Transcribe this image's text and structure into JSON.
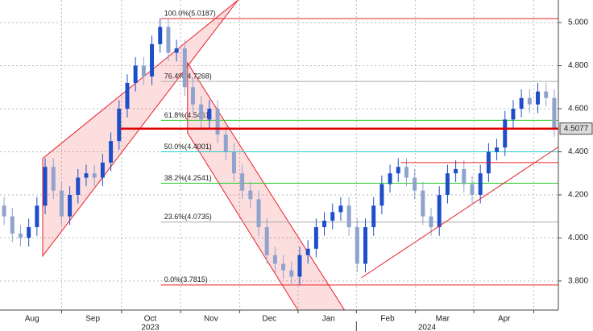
{
  "chart_data": {
    "type": "candlestick",
    "xlim": [
      0,
      68
    ],
    "ylim": [
      3.665,
      5.105
    ],
    "yticks": [
      {
        "value": 3.8,
        "label": "3.800"
      },
      {
        "value": 4.0,
        "label": "4.000"
      },
      {
        "value": 4.2,
        "label": "4.200"
      },
      {
        "value": 4.4,
        "label": "4.400"
      },
      {
        "value": 4.6,
        "label": "4.600"
      },
      {
        "value": 4.8,
        "label": "4.800"
      },
      {
        "value": 5.0,
        "label": "5.000"
      }
    ],
    "xticks": [
      {
        "value": 3.9,
        "label": "Aug"
      },
      {
        "value": 11.3,
        "label": "Sep"
      },
      {
        "value": 18.3,
        "label": "Oct"
      },
      {
        "value": 25.7,
        "label": "Nov"
      },
      {
        "value": 32.8,
        "label": "Dec"
      },
      {
        "value": 40,
        "label": "Jan"
      },
      {
        "value": 47.2,
        "label": "Feb"
      },
      {
        "value": 53.9,
        "label": "Mar"
      },
      {
        "value": 61.4,
        "label": "Apr"
      }
    ],
    "year_ticks": [
      {
        "value": 18.3,
        "label": "2023"
      },
      {
        "value": 52,
        "label": "2024"
      }
    ],
    "xgrid": [
      7.5,
      14.8,
      22,
      29.2,
      36.3,
      43.4,
      50.6,
      57.7,
      65
    ],
    "grid": true,
    "up_color": "#1f4fc8",
    "down_color": "#8fa3cc",
    "ohlc": [
      [
        4.15,
        4.19,
        4.06,
        4.1
      ],
      [
        4.1,
        4.14,
        3.98,
        4.02
      ],
      [
        4.02,
        4.06,
        3.96,
        4.0
      ],
      [
        4.0,
        4.09,
        3.96,
        4.05
      ],
      [
        4.05,
        4.19,
        4.01,
        4.15
      ],
      [
        4.15,
        4.37,
        4.11,
        4.33
      ],
      [
        4.33,
        4.37,
        4.18,
        4.22
      ],
      [
        4.22,
        4.26,
        4.06,
        4.1
      ],
      [
        4.1,
        4.24,
        4.06,
        4.2
      ],
      [
        4.2,
        4.32,
        4.16,
        4.28
      ],
      [
        4.28,
        4.34,
        4.24,
        4.3
      ],
      [
        4.3,
        4.34,
        4.24,
        4.28
      ],
      [
        4.28,
        4.39,
        4.24,
        4.35
      ],
      [
        4.35,
        4.49,
        4.31,
        4.45
      ],
      [
        4.45,
        4.64,
        4.41,
        4.6
      ],
      [
        4.6,
        4.76,
        4.56,
        4.72
      ],
      [
        4.72,
        4.84,
        4.68,
        4.8
      ],
      [
        4.8,
        4.84,
        4.71,
        4.75
      ],
      [
        4.75,
        4.94,
        4.71,
        4.9
      ],
      [
        4.9,
        5.02,
        4.86,
        4.98
      ],
      [
        4.98,
        5.02,
        4.82,
        4.86
      ],
      [
        4.86,
        4.92,
        4.82,
        4.88
      ],
      [
        4.88,
        4.92,
        4.66,
        4.7
      ],
      [
        4.7,
        4.74,
        4.58,
        4.62
      ],
      [
        4.62,
        4.66,
        4.51,
        4.55
      ],
      [
        4.55,
        4.64,
        4.51,
        4.6
      ],
      [
        4.6,
        4.64,
        4.44,
        4.48
      ],
      [
        4.48,
        4.52,
        4.36,
        4.4
      ],
      [
        4.4,
        4.44,
        4.26,
        4.3
      ],
      [
        4.3,
        4.34,
        4.18,
        4.22
      ],
      [
        4.22,
        4.26,
        4.14,
        4.18
      ],
      [
        4.18,
        4.22,
        4.01,
        4.05
      ],
      [
        4.05,
        4.09,
        3.88,
        3.92
      ],
      [
        3.92,
        3.96,
        3.84,
        3.88
      ],
      [
        3.88,
        3.92,
        3.81,
        3.85
      ],
      [
        3.85,
        3.89,
        3.78,
        3.82
      ],
      [
        3.82,
        3.96,
        3.78,
        3.92
      ],
      [
        3.92,
        3.99,
        3.88,
        3.95
      ],
      [
        3.95,
        4.09,
        3.91,
        4.05
      ],
      [
        4.05,
        4.12,
        4.01,
        4.08
      ],
      [
        4.08,
        4.16,
        4.04,
        4.12
      ],
      [
        4.12,
        4.19,
        4.08,
        4.15
      ],
      [
        4.15,
        4.19,
        4.01,
        4.05
      ],
      [
        4.05,
        4.09,
        3.84,
        3.88
      ],
      [
        3.88,
        4.09,
        3.84,
        4.05
      ],
      [
        4.05,
        4.19,
        4.01,
        4.15
      ],
      [
        4.15,
        4.29,
        4.11,
        4.25
      ],
      [
        4.25,
        4.34,
        4.21,
        4.3
      ],
      [
        4.3,
        4.37,
        4.26,
        4.33
      ],
      [
        4.33,
        4.37,
        4.24,
        4.28
      ],
      [
        4.28,
        4.32,
        4.18,
        4.22
      ],
      [
        4.22,
        4.26,
        4.06,
        4.1
      ],
      [
        4.1,
        4.14,
        4.01,
        4.05
      ],
      [
        4.05,
        4.24,
        4.01,
        4.2
      ],
      [
        4.2,
        4.34,
        4.16,
        4.3
      ],
      [
        4.3,
        4.36,
        4.26,
        4.32
      ],
      [
        4.32,
        4.36,
        4.21,
        4.25
      ],
      [
        4.25,
        4.29,
        4.16,
        4.2
      ],
      [
        4.2,
        4.34,
        4.16,
        4.3
      ],
      [
        4.3,
        4.44,
        4.26,
        4.4
      ],
      [
        4.4,
        4.46,
        4.36,
        4.42
      ],
      [
        4.42,
        4.59,
        4.38,
        4.55
      ],
      [
        4.55,
        4.64,
        4.51,
        4.6
      ],
      [
        4.6,
        4.69,
        4.56,
        4.65
      ],
      [
        4.65,
        4.69,
        4.58,
        4.62
      ],
      [
        4.62,
        4.72,
        4.58,
        4.68
      ],
      [
        4.68,
        4.72,
        4.61,
        4.65
      ],
      [
        4.65,
        4.69,
        4.47,
        4.5077
      ]
    ],
    "channels": [
      {
        "color": "#e8202a",
        "points": [
          [
            5.2,
            3.916
          ],
          [
            5.2,
            4.369
          ],
          [
            29.0,
            5.105
          ],
          [
            23.14,
            4.813
          ]
        ]
      },
      {
        "color": "#e8202a",
        "points": [
          [
            22.84,
            4.813
          ],
          [
            41.96,
            3.665
          ],
          [
            36.27,
            3.665
          ],
          [
            22.84,
            4.488
          ]
        ]
      }
    ],
    "fib_start": 19.6,
    "fib_levels": [
      {
        "value": 5.0187,
        "label": "100.0%(5.0187)",
        "color": "#e8202a"
      },
      {
        "value": 4.7268,
        "label": "76.4%(4.7268)",
        "color": "#aaaaaa"
      },
      {
        "value": 4.5461,
        "label": "61.8%(4.5461)",
        "color": "#22cc22"
      },
      {
        "value": 4.4001,
        "label": "50.0%(4.4001)",
        "color": "#22cccc"
      },
      {
        "value": 4.2541,
        "label": "38.2%(4.2541)",
        "color": "#22cc22"
      },
      {
        "value": 4.0735,
        "label": "23.6%(4.0735)",
        "color": "#aaaaaa"
      },
      {
        "value": 3.7815,
        "label": "0.0%(3.7815)",
        "color": "#e8202a"
      }
    ],
    "trend_line": {
      "color": "#e8202a",
      "points": [
        [
          44.02,
          3.815
        ],
        [
          67.94,
          4.421
        ]
      ]
    },
    "level_line": {
      "color": "#e8202a",
      "value": 4.35,
      "x": [
        48.8,
        68
      ]
    },
    "current_price": {
      "value": 4.5077,
      "color": "#e00000",
      "x": [
        14.7,
        68
      ]
    }
  }
}
